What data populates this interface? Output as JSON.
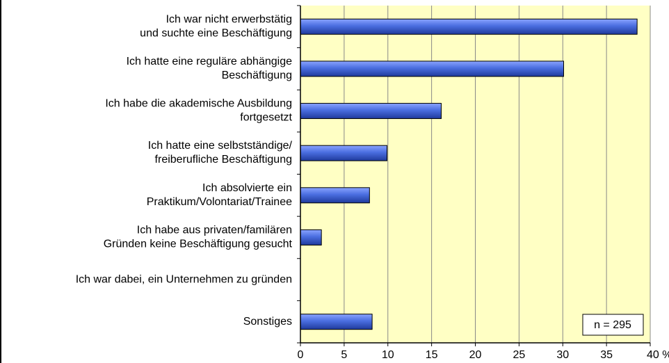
{
  "chart_data": {
    "type": "bar",
    "orientation": "horizontal",
    "categories": [
      "Ich war nicht erwerbstätig\nund suchte eine Beschäftigung",
      "Ich hatte eine reguläre abhängige\nBeschäftigung",
      "Ich habe die akademische Ausbildung\nfortgesetzt",
      "Ich hatte eine selbstständige/\nfreiberufliche Beschäftigung",
      "Ich absolvierte ein\nPraktikum/Volontariat/Trainee",
      "Ich habe aus privaten/familären\nGründen keine Beschäftigung gesucht",
      "Ich war dabei, ein Unternehmen zu gründen",
      "Sonstiges"
    ],
    "values": [
      38.5,
      30.1,
      16.1,
      9.9,
      7.9,
      2.4,
      0,
      8.2
    ],
    "color": "#4a6ee0",
    "xlim": [
      0,
      40
    ],
    "xticks": [
      0,
      5,
      10,
      15,
      20,
      25,
      30,
      35,
      {
        "value": 40,
        "label": "40 %"
      }
    ],
    "grid": true,
    "annotation": "n = 295"
  }
}
